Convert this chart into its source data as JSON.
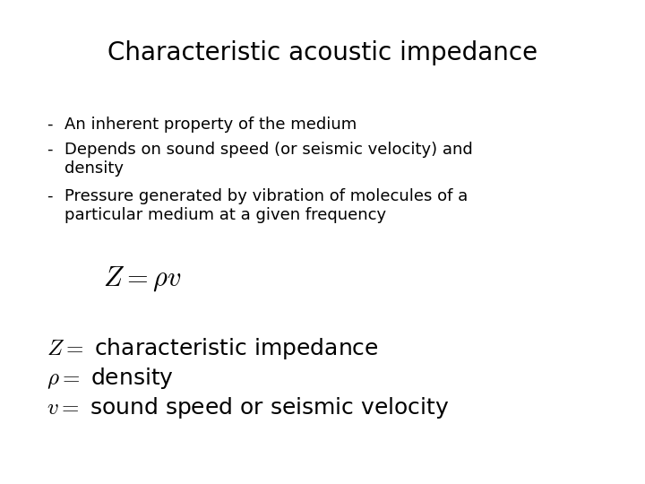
{
  "title": "Characteristic acoustic impedance",
  "title_fontsize": 20,
  "background_color": "#ffffff",
  "bullet_lines": [
    [
      "- ",
      "An inherent property of the medium"
    ],
    [
      "- ",
      "Depends on sound speed (or seismic velocity) and\ndensity"
    ],
    [
      "- ",
      "Pressure generated by vibration of molecules of a\nparticular medium at a given frequency"
    ]
  ],
  "bullet_fontsize": 13,
  "formula_main": "$Z = \\rho v$",
  "formula_main_fontsize": 22,
  "definitions": [
    "$Z = $ characteristic impedance",
    "$\\rho = $ density",
    "$v = $ sound speed or seismic velocity"
  ],
  "def_fontsize": 18
}
